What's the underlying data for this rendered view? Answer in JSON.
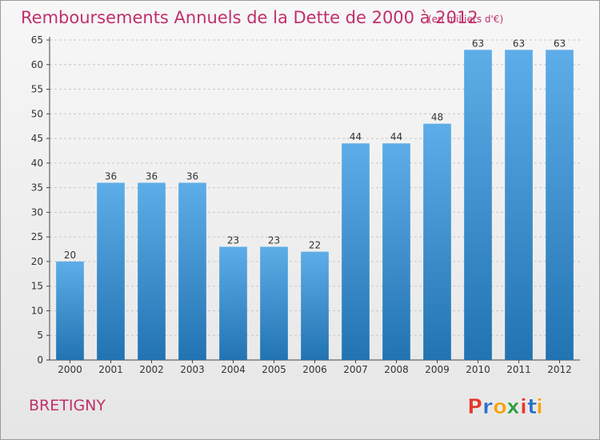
{
  "header": {
    "title": "Remboursements Annuels de la Dette de 2000 à 2012",
    "unit": "(en milliers d'€)"
  },
  "footer": {
    "city": "BRETIGNY",
    "logo_letters": [
      "P",
      "r",
      "o",
      "x",
      "i",
      "t",
      "i"
    ],
    "logo_colors": [
      "#e23a2f",
      "#2f6fc9",
      "#f0a31b",
      "#2f9e44",
      "#e23a2f",
      "#2f6fc9",
      "#f0a31b"
    ]
  },
  "colors": {
    "bar_light": "#5dade8",
    "bar_dark": "#2273b2",
    "title": "#c0306a",
    "axis": "#444444",
    "grid": "#c8c8c8"
  },
  "chart_data": {
    "type": "bar",
    "title": "Remboursements Annuels de la Dette de 2000 à 2012",
    "subtitle": "(en milliers d'€)",
    "xlabel": "",
    "ylabel": "",
    "categories": [
      "2000",
      "2001",
      "2002",
      "2003",
      "2004",
      "2005",
      "2006",
      "2007",
      "2008",
      "2009",
      "2010",
      "2011",
      "2012"
    ],
    "values": [
      20,
      36,
      36,
      36,
      23,
      23,
      22,
      44,
      44,
      48,
      63,
      63,
      63
    ],
    "ylim": [
      0,
      65
    ],
    "yticks": [
      0,
      5,
      10,
      15,
      20,
      25,
      30,
      35,
      40,
      45,
      50,
      55,
      60,
      65
    ],
    "grid": true,
    "data_labels": true
  }
}
